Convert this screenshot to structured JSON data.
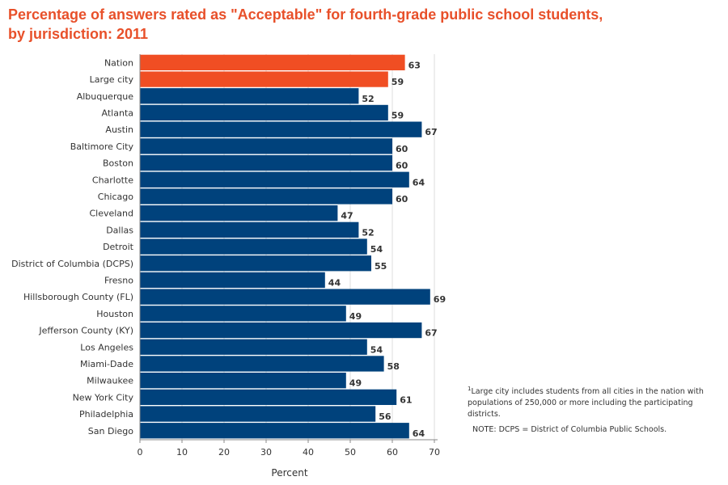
{
  "header": {
    "title_line1": "Percentage of answers rated as \"Acceptable\" for fourth-grade public school students,",
    "title_line2": "by jurisdiction: 2011"
  },
  "footnote": {
    "marker": "1",
    "text": "Large city includes students from all cities in the nation with populations of 250,000 or more including the participating districts.",
    "note": "NOTE: DCPS = District of Columbia Public Schools."
  },
  "colors": {
    "highlight": "#f04e23",
    "default": "#00427c",
    "title": "#e8502a"
  },
  "chart_data": {
    "type": "bar",
    "orientation": "horizontal",
    "xlabel": "Percent",
    "xlim": [
      0,
      70
    ],
    "xticks": [
      0,
      10,
      20,
      30,
      40,
      50,
      60,
      70
    ],
    "grid": true,
    "categories": [
      "Nation",
      "Large city",
      "Albuquerque",
      "Atlanta",
      "Austin",
      "Baltimore City",
      "Boston",
      "Charlotte",
      "Chicago",
      "Cleveland",
      "Dallas",
      "Detroit",
      "District of Columbia (DCPS)",
      "Fresno",
      "Hillsborough County (FL)",
      "Houston",
      "Jefferson County (KY)",
      "Los Angeles",
      "Miami-Dade",
      "Milwaukee",
      "New York City",
      "Philadelphia",
      "San Diego"
    ],
    "values": [
      63,
      59,
      52,
      59,
      67,
      60,
      60,
      64,
      60,
      47,
      52,
      54,
      55,
      44,
      69,
      49,
      67,
      54,
      58,
      49,
      61,
      56,
      64
    ],
    "highlighted": [
      "Nation",
      "Large city"
    ]
  }
}
